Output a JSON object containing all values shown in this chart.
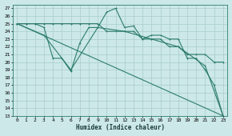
{
  "xlabel": "Humidex (Indice chaleur)",
  "ylabel": "",
  "bg_color": "#cce8e8",
  "grid_color": "#aacccc",
  "line_color": "#2d7d6e",
  "xlim": [
    -0.5,
    23.5
  ],
  "ylim": [
    13,
    27.5
  ],
  "xticks": [
    0,
    1,
    2,
    3,
    4,
    5,
    6,
    7,
    8,
    9,
    10,
    11,
    12,
    13,
    14,
    15,
    16,
    17,
    18,
    19,
    20,
    21,
    22,
    23
  ],
  "yticks": [
    13,
    14,
    15,
    16,
    17,
    18,
    19,
    20,
    21,
    22,
    23,
    24,
    25,
    26,
    27
  ],
  "series_diagonal": {
    "x": [
      0,
      23
    ],
    "y": [
      25,
      13
    ]
  },
  "series_smooth": {
    "x": [
      0,
      1,
      2,
      3,
      4,
      5,
      6,
      7,
      8,
      9,
      10,
      11,
      12,
      13,
      14,
      15,
      16,
      17,
      18,
      19,
      20,
      21,
      22,
      23
    ],
    "y": [
      25,
      25,
      25,
      25,
      25,
      25,
      25,
      25,
      25,
      25,
      24,
      24,
      24,
      24,
      23,
      23,
      23,
      22,
      22,
      21,
      21,
      21,
      20,
      20
    ]
  },
  "series_jagged": {
    "x": [
      0,
      1,
      2,
      3,
      4,
      5,
      6,
      7,
      8,
      9,
      10,
      11,
      12,
      13,
      14,
      15,
      16,
      17,
      18,
      19,
      20,
      21,
      22,
      23
    ],
    "y": [
      25,
      25,
      25,
      24.5,
      20.5,
      20.5,
      18.8,
      22.5,
      24.5,
      24.5,
      26.5,
      27,
      24.5,
      24.7,
      23,
      23.5,
      23.5,
      23,
      23,
      20.5,
      20.5,
      19,
      17,
      13
    ]
  },
  "series_sparse": {
    "x": [
      0,
      3,
      6,
      9,
      12,
      15,
      18,
      21,
      23
    ],
    "y": [
      25,
      23.5,
      19,
      24.5,
      24,
      23,
      22,
      19.5,
      13
    ]
  }
}
